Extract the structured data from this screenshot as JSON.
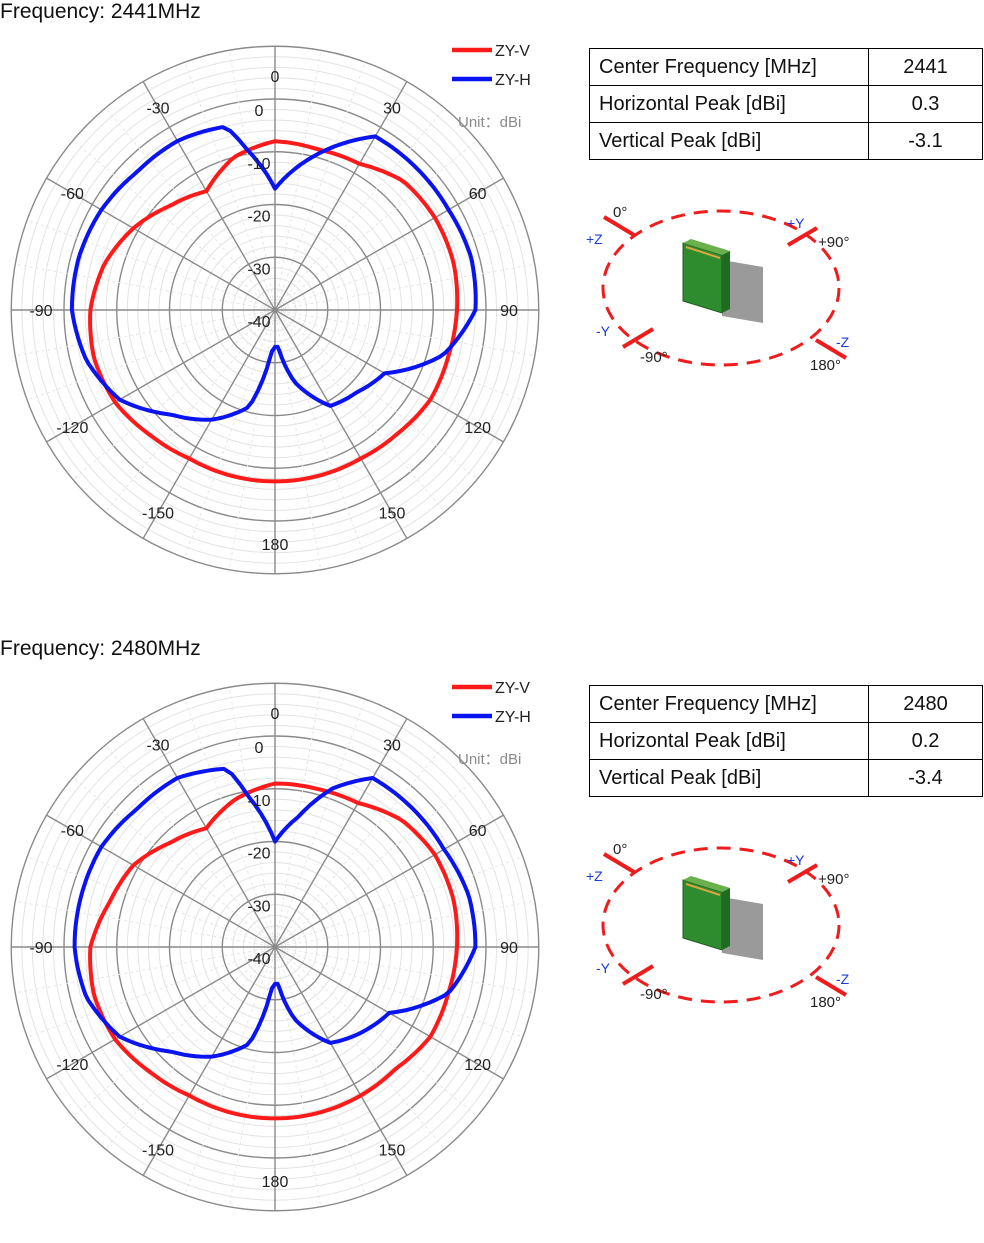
{
  "charts": [
    {
      "title": "Frequency: 2441MHz",
      "table": [
        {
          "label": "Center Frequency [MHz]",
          "value": "2441"
        },
        {
          "label": "Horizontal Peak [dBi]",
          "value": "0.3"
        },
        {
          "label": "Vertical Peak [dBi]",
          "value": "-3.1"
        }
      ],
      "orientation": {
        "zero": "0°",
        "plus_z": "+Z",
        "plus_y": "+Y",
        "plus90": "+90°",
        "minus_y": "-Y",
        "minus90": "-90°",
        "minus_z": "-Z",
        "d180": "180°"
      }
    },
    {
      "title": "Frequency: 2480MHz",
      "table": [
        {
          "label": "Center Frequency [MHz]",
          "value": "2480"
        },
        {
          "label": "Horizontal Peak [dBi]",
          "value": "0.2"
        },
        {
          "label": "Vertical Peak [dBi]",
          "value": "-3.4"
        }
      ],
      "orientation": {
        "zero": "0°",
        "plus_z": "+Z",
        "plus_y": "+Y",
        "plus90": "+90°",
        "minus_y": "-Y",
        "minus90": "-90°",
        "minus_z": "-Z",
        "d180": "180°"
      }
    }
  ],
  "chart_data": [
    {
      "type": "polar-line",
      "title": "Frequency: 2441MHz",
      "unit_label": "Unit：dBi",
      "r_range": [
        -40,
        0
      ],
      "r_ticks": [
        "0",
        "-10",
        "-20",
        "-30",
        "-40"
      ],
      "angle_ticks": [
        "0",
        "30",
        "60",
        "90",
        "120",
        "150",
        "180",
        "-150",
        "-120",
        "-90",
        "-60",
        "-30"
      ],
      "legend_position": "top-right",
      "grid": true,
      "series": [
        {
          "name": "ZY-V",
          "color": "#ff1a1a",
          "angles": [
            0,
            15,
            30,
            45,
            60,
            75,
            90,
            105,
            120,
            135,
            150,
            165,
            180,
            195,
            210,
            225,
            240,
            255,
            270,
            285,
            300,
            315,
            330,
            345
          ],
          "values": [
            -8,
            -8.5,
            -8,
            -5.5,
            -5,
            -5,
            -5.5,
            -6,
            -6,
            -7,
            -7.5,
            -7.5,
            -7.5,
            -7.5,
            -7.5,
            -6.5,
            -5,
            -4.5,
            -5,
            -6.5,
            -9,
            -12,
            -14,
            -10
          ]
        },
        {
          "name": "ZY-H",
          "color": "#0a14f0",
          "angles": [
            0,
            10,
            20,
            30,
            45,
            60,
            75,
            90,
            105,
            120,
            135,
            150,
            165,
            175,
            180,
            185,
            195,
            210,
            225,
            240,
            255,
            270,
            285,
            300,
            315,
            330,
            345,
            350
          ],
          "values": [
            -17,
            -12,
            -7,
            -2,
            -2,
            -2,
            -1.5,
            -2,
            -7,
            -16,
            -18,
            -19,
            -26,
            -33,
            -33,
            -32,
            -21,
            -16,
            -12,
            -6,
            -3,
            -1.5,
            -1.5,
            -2,
            -3,
            -3,
            -4,
            -9
          ]
        }
      ]
    },
    {
      "type": "polar-line",
      "title": "Frequency: 2480MHz",
      "unit_label": "Unit：dBi",
      "r_range": [
        -40,
        0
      ],
      "r_ticks": [
        "0",
        "-10",
        "-20",
        "-30",
        "-40"
      ],
      "angle_ticks": [
        "0",
        "30",
        "60",
        "90",
        "120",
        "150",
        "180",
        "-150",
        "-120",
        "-90",
        "-60",
        "-30"
      ],
      "legend_position": "top-right",
      "grid": true,
      "series": [
        {
          "name": "ZY-V",
          "color": "#ff1a1a",
          "angles": [
            0,
            15,
            30,
            45,
            60,
            75,
            90,
            105,
            120,
            135,
            150,
            165,
            180,
            195,
            210,
            225,
            240,
            255,
            270,
            285,
            300,
            315,
            330,
            345
          ],
          "values": [
            -9,
            -9,
            -8.5,
            -6,
            -5,
            -5,
            -5.5,
            -6,
            -6,
            -7.5,
            -7.5,
            -7.5,
            -7.5,
            -7.5,
            -7.5,
            -6.5,
            -5,
            -4.5,
            -5,
            -7.5,
            -9,
            -12,
            -14,
            -11
          ]
        },
        {
          "name": "ZY-H",
          "color": "#0a14f0",
          "angles": [
            0,
            10,
            20,
            30,
            45,
            60,
            75,
            90,
            105,
            120,
            135,
            150,
            165,
            175,
            180,
            185,
            195,
            210,
            225,
            240,
            255,
            270,
            285,
            300,
            315,
            330,
            345,
            350
          ],
          "values": [
            -20,
            -15,
            -8,
            -3,
            -3,
            -3,
            -2,
            -2,
            -6,
            -15,
            -17,
            -19,
            -26,
            -33,
            -33,
            -32,
            -21,
            -16,
            -12,
            -6,
            -3,
            -2,
            -2,
            -2,
            -3,
            -3,
            -5,
            -11
          ]
        }
      ]
    }
  ]
}
